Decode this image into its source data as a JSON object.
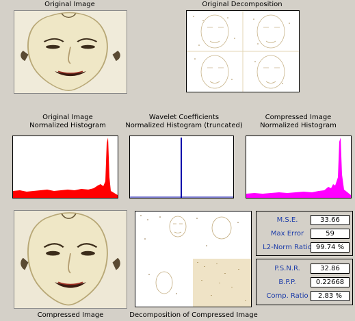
{
  "labels": {
    "original_image": "Original Image",
    "original_decomposition": "Original Decomposition",
    "hist_original_1": "Original Image",
    "hist_original_2": "Normalized Histogram",
    "hist_wavelet_1": "Wavelet Coefficients",
    "hist_wavelet_2": "Normalized Histogram (truncated)",
    "hist_compressed_1": "Compressed Image",
    "hist_compressed_2": "Normalized Histogram",
    "compressed_image": "Compressed Image",
    "compressed_decomposition": "Decomposition of Compressed Image"
  },
  "stats": [
    {
      "name": "M.S.E.",
      "value": "33.66"
    },
    {
      "name": "Max Error",
      "value": "59"
    },
    {
      "name": "L2-Norm Ratio",
      "value": "99.74 %"
    }
  ],
  "stats2": [
    {
      "name": "P.S.N.R.",
      "value": "32.86"
    },
    {
      "name": "B.P.P.",
      "value": "0.22668"
    },
    {
      "name": "Comp. Ratio",
      "value": "2.83 %"
    }
  ],
  "colors": {
    "hist_original": "#ff0000",
    "hist_wavelet": "#0000aa",
    "hist_compressed": "#ff00ff",
    "stat_label": "#1a3aa8"
  }
}
